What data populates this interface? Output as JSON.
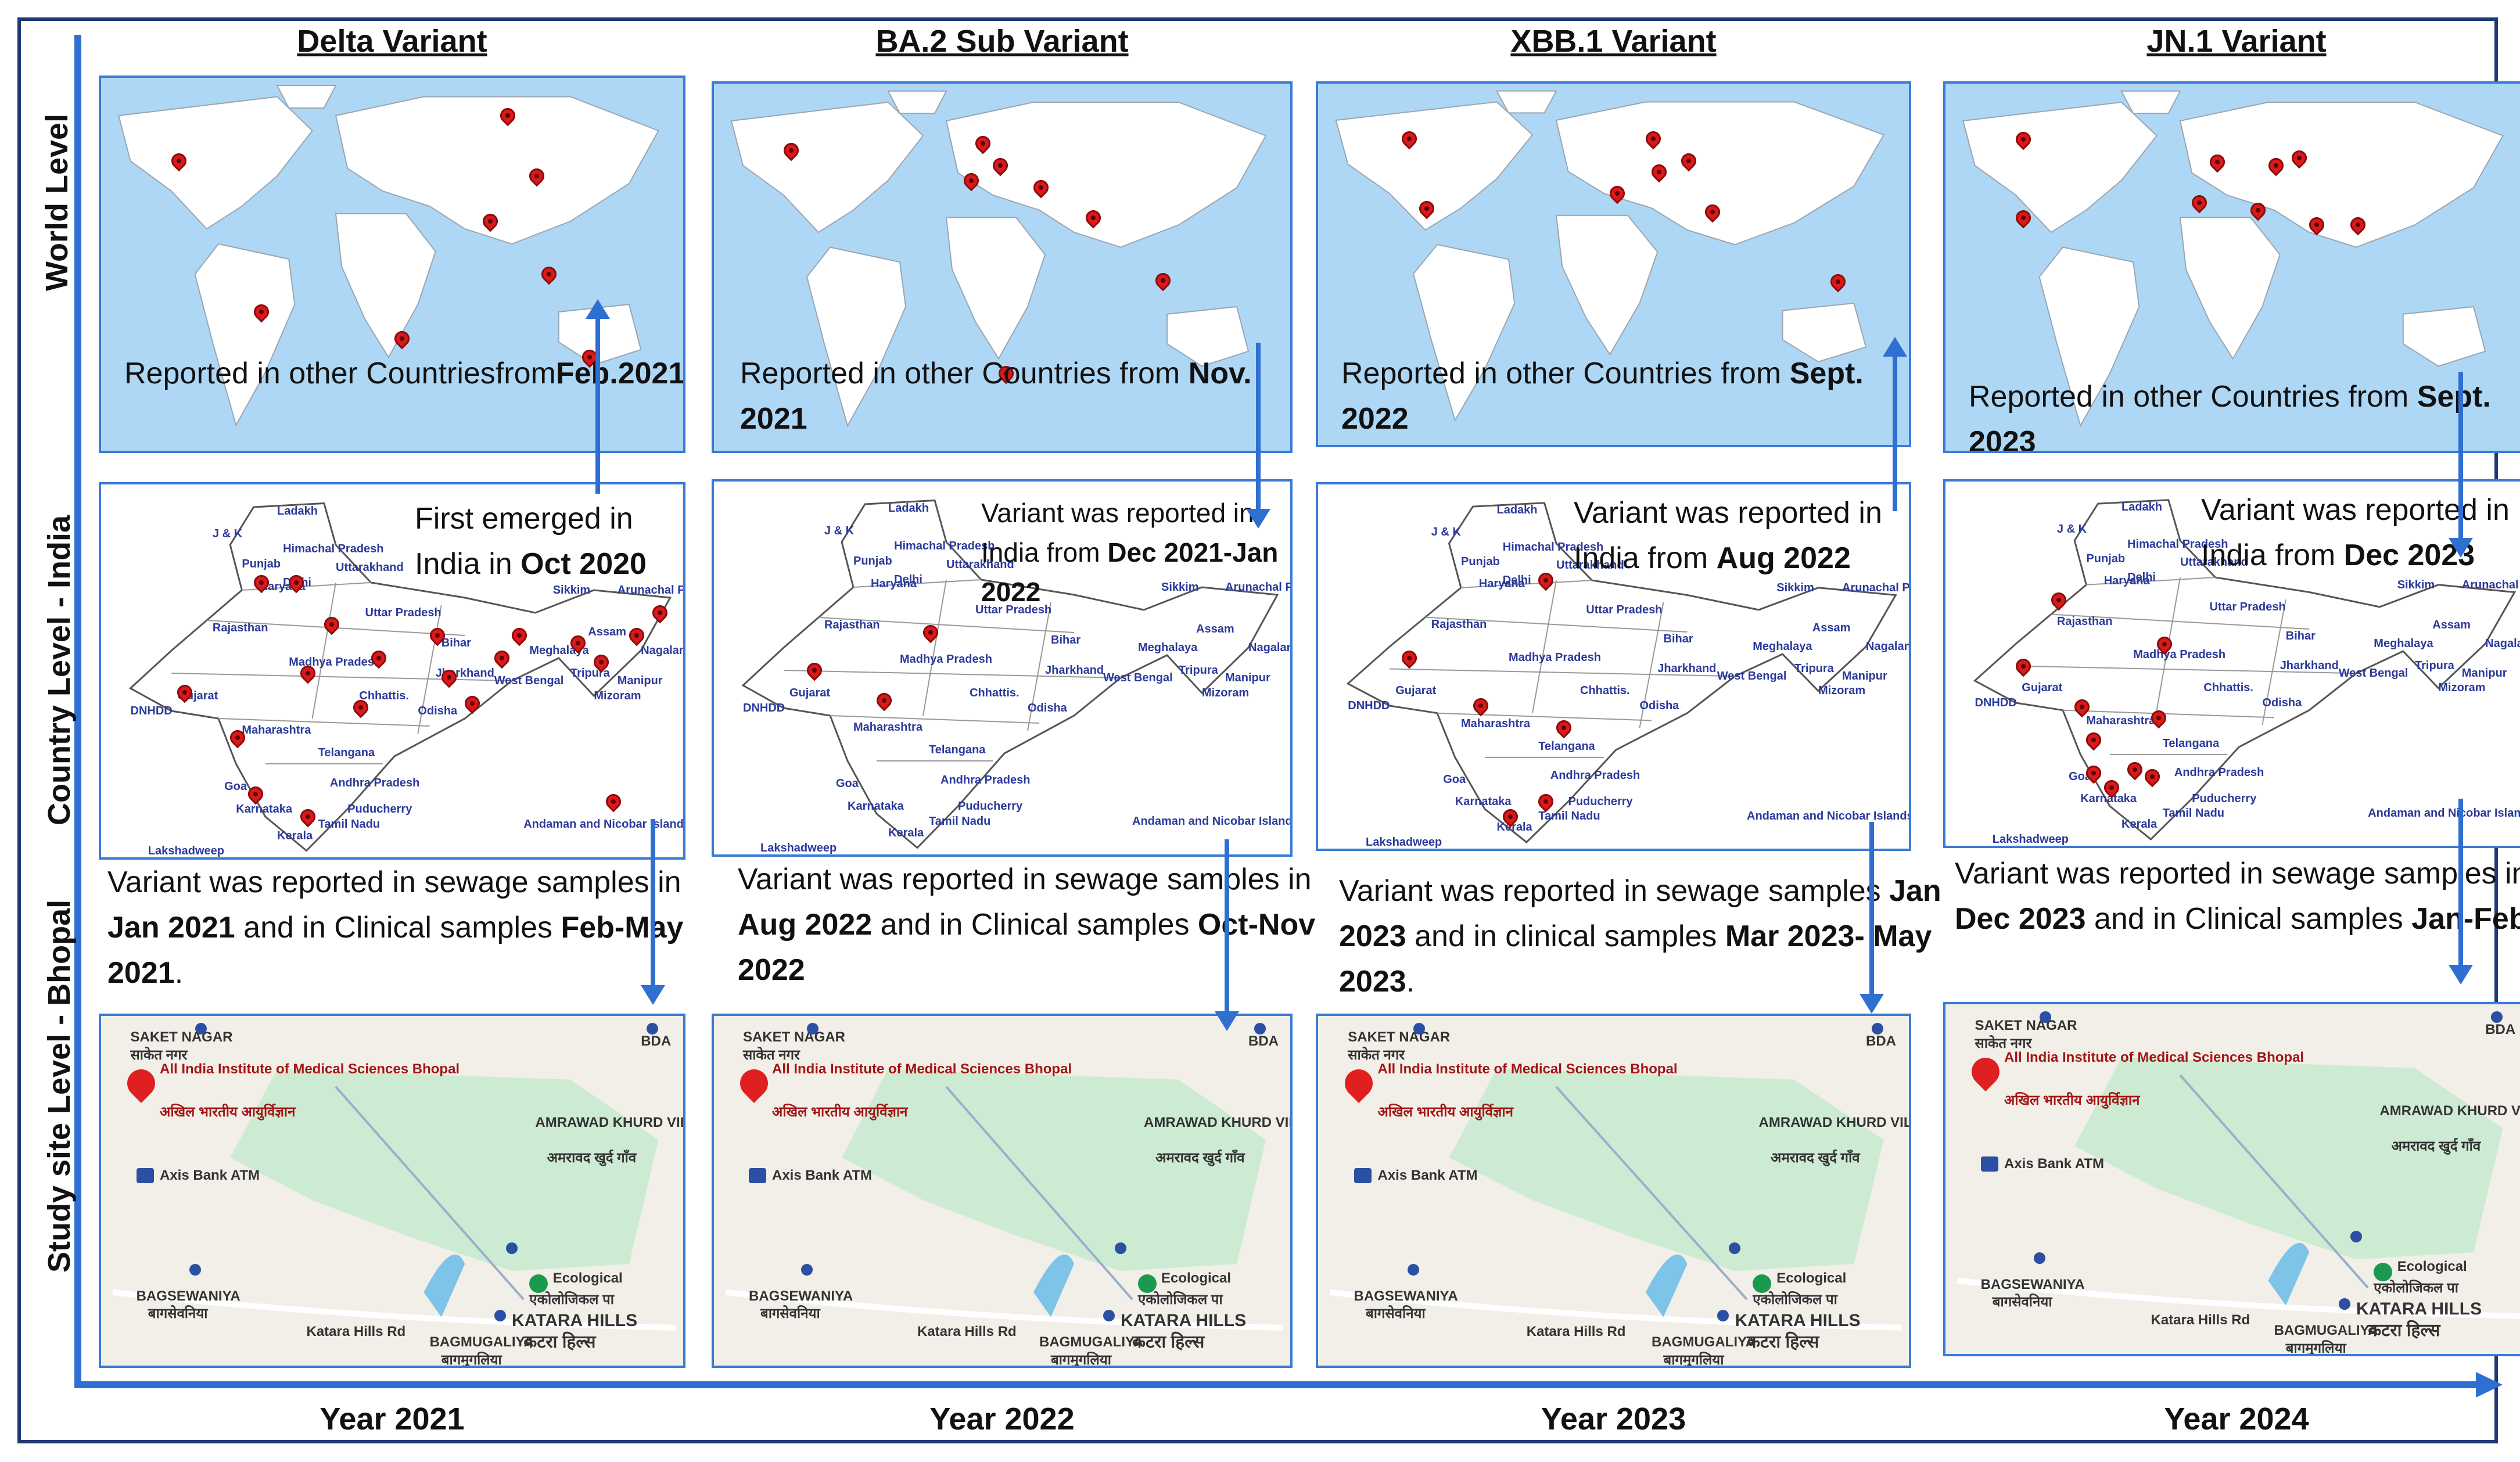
{
  "row_labels": {
    "world": "World Level",
    "country": "Country Level - India",
    "study": "Study site  Level - Bhopal"
  },
  "columns": [
    {
      "title": "Delta Variant",
      "world_text": [
        {
          "t": "Reported in other Countries"
        },
        {
          "t": "from"
        },
        {
          "b": "Feb.2021"
        },
        {
          "t": "."
        }
      ],
      "india_text": [
        {
          "t": "First emerged in India in "
        },
        {
          "b": "Oct 2020"
        }
      ],
      "sewage_text": [
        {
          "t": "Variant was reported in sewage samples in "
        },
        {
          "b": "Jan 2021"
        },
        {
          "t": " and in Clinical samples "
        },
        {
          "b": "Feb-May 2021"
        },
        {
          "t": "."
        }
      ],
      "year": "Year 2021"
    },
    {
      "title": "BA.2 Sub Variant",
      "world_text": [
        {
          "t": "Reported in other Countries from "
        },
        {
          "b": "Nov. 2021"
        }
      ],
      "india_text": [
        {
          "t": "Variant was reported in India from "
        },
        {
          "b": "Dec 2021-Jan 2022"
        }
      ],
      "sewage_text": [
        {
          "t": "Variant was reported in sewage samples in "
        },
        {
          "b": "Aug 2022"
        },
        {
          "t": " and in Clinical samples "
        },
        {
          "b": "Oct-Nov 2022"
        }
      ],
      "year": "Year 2022"
    },
    {
      "title": "XBB.1 Variant",
      "world_text": [
        {
          "t": "Reported in other Countries from "
        },
        {
          "b": "Sept. 2022"
        }
      ],
      "india_text": [
        {
          "t": "Variant was reported in India from "
        },
        {
          "b": "Aug 2022"
        }
      ],
      "sewage_text": [
        {
          "t": "Variant was reported in sewage samples "
        },
        {
          "b": "Jan 2023"
        },
        {
          "t": " and in clinical samples "
        },
        {
          "b": "Mar 2023- May 2023"
        },
        {
          "t": "."
        }
      ],
      "year": "Year 2023"
    },
    {
      "title": "JN.1 Variant",
      "world_text": [
        {
          "t": "Reported in other Countries from "
        },
        {
          "b": "Sept. 2023"
        }
      ],
      "india_text": [
        {
          "t": "Variant was reported in India from "
        },
        {
          "b": "Dec 2023"
        }
      ],
      "sewage_text": [
        {
          "t": "Variant was reported in sewage samples in "
        },
        {
          "b": "Dec 2023"
        },
        {
          "t": " and in Clinical samples "
        },
        {
          "b": "Jan-Feb"
        }
      ],
      "year": "Year 2024"
    }
  ],
  "india_map_labels": [
    "Ladakh",
    "J & K",
    "Himachal Pradesh",
    "Punjab",
    "Haryana",
    "Uttarakhand",
    "Delhi",
    "Uttar Pradesh",
    "Rajasthan",
    "Gujarat",
    "Madhya Pradesh",
    "Bihar",
    "Jharkhand",
    "West Bengal",
    "Chhattis.",
    "Odisha",
    "Maharashtra",
    "Telangana",
    "Andhra Pradesh",
    "Goa",
    "Karnataka",
    "Tamil Nadu",
    "Kerala",
    "Puducherry",
    "Assam",
    "Meghalaya",
    "Arunachal P.",
    "Lakshadweep",
    "DNHDD",
    "Andaman and Nicobar Islands",
    "Sikkim",
    "Tripura",
    "Mizoram",
    "Nagaland",
    "Manipur"
  ],
  "bhopal_map": {
    "saket": "SAKET NAGAR",
    "saket_hi": "साकेत नगर",
    "aiims": "All India Institute of Medical Sciences Bhopal",
    "aiims_hi": "अखिल भारतीय आयुर्विज्ञान",
    "amrawad": "AMRAWAD KHURD VILLAGE",
    "amrawad_hi": "अमरावद खुर्द गाँव",
    "bda": "BDA",
    "atm": "Axis Bank ATM",
    "bagsewaniya": "BAGSEWANIYA",
    "bagsewaniya_hi": "बागसेवनिया",
    "katara_rd": "Katara Hills Rd",
    "eco": "Ecological",
    "eco_hi": "एकोलोजिकल पा",
    "katara": "KATARA HILLS",
    "katara_hi": "कटरा हिल्स",
    "bagmugaliya": "BAGMUGALIYA",
    "bagmugaliya_hi": "बागमुगलिया"
  },
  "colors": {
    "axis": "#2f6fd1",
    "ocean": "#aed7f5",
    "pin": "#d91a1a",
    "frame": "#1f3b73"
  }
}
